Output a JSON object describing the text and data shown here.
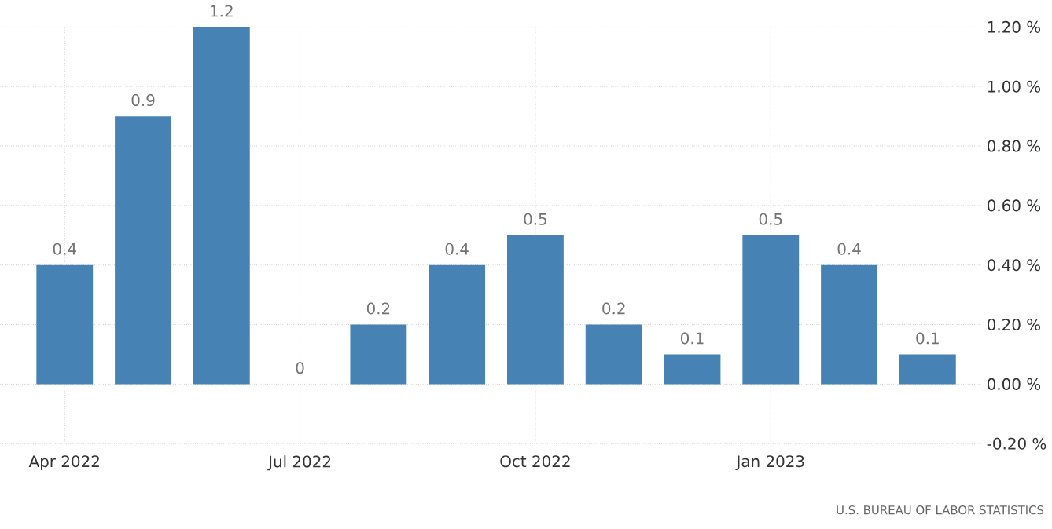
{
  "chart_data": {
    "type": "bar",
    "categories": [
      "Apr 2022",
      null,
      null,
      "Jul 2022",
      null,
      null,
      "Oct 2022",
      null,
      null,
      "Jan 2023",
      null,
      null
    ],
    "values": [
      0.4,
      0.9,
      1.2,
      0,
      0.2,
      0.4,
      0.5,
      0.2,
      0.1,
      0.5,
      0.4,
      0.1
    ],
    "color": "#4682b4",
    "ylim": [
      -0.2,
      1.2
    ],
    "yticks": [
      {
        "value": -0.2,
        "label": "-0.20 %"
      },
      {
        "value": 0,
        "label": "0.00 %"
      },
      {
        "value": 0.2,
        "label": "0.20 %"
      },
      {
        "value": 0.4,
        "label": "0.40 %"
      },
      {
        "value": 0.6,
        "label": "0.60 %"
      },
      {
        "value": 0.8,
        "label": "0.80 %"
      },
      {
        "value": 1.0,
        "label": "1.00 %"
      },
      {
        "value": 1.2,
        "label": "1.20 %"
      }
    ],
    "grid": true,
    "data_labels": true,
    "annotations": [
      "U.S. BUREAU OF LABOR STATISTICS"
    ]
  }
}
